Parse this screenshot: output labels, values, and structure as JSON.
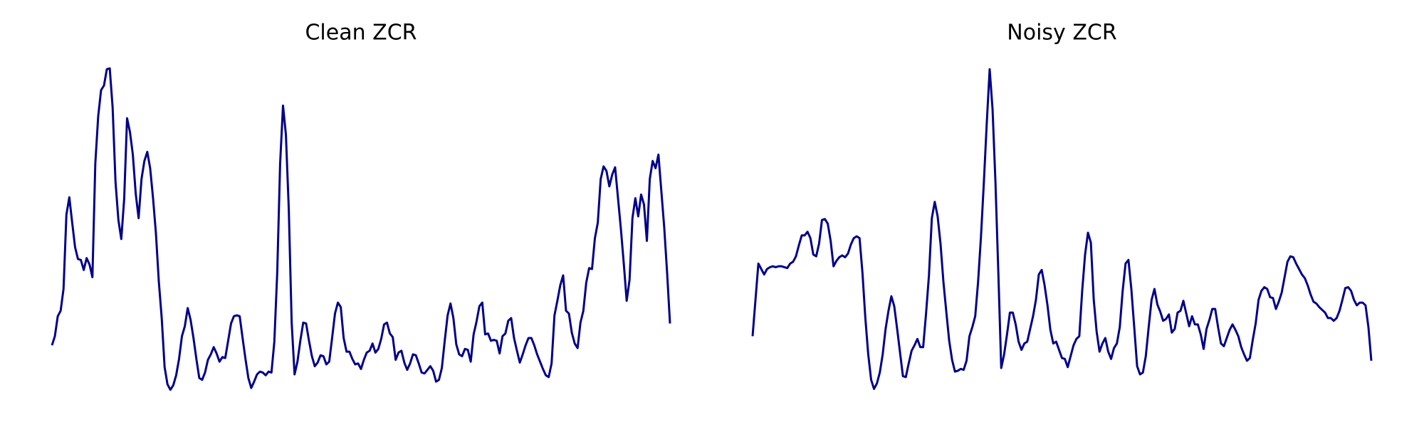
{
  "chart_data": [
    {
      "type": "line",
      "title": "Clean ZCR",
      "color": "#00008b",
      "ylim": [
        0,
        355
      ],
      "values": [
        50,
        60,
        82,
        88,
        112,
        194,
        213,
        185,
        158,
        145,
        144,
        133,
        146,
        139,
        125,
        250,
        302,
        331,
        336,
        354,
        355,
        312,
        230,
        188,
        167,
        211,
        300,
        285,
        260,
        217,
        190,
        233,
        253,
        263,
        245,
        212,
        173,
        120,
        80,
        26,
        7,
        1,
        6,
        17,
        35,
        60,
        71,
        91,
        78,
        58,
        35,
        14,
        12,
        20,
        34,
        40,
        48,
        41,
        32,
        37,
        36,
        55,
        74,
        82,
        83,
        82,
        58,
        35,
        14,
        3,
        10,
        18,
        21,
        20,
        17,
        21,
        20,
        54,
        130,
        250,
        314,
        282,
        200,
        75,
        18,
        32,
        55,
        75,
        74,
        55,
        38,
        27,
        31,
        39,
        38,
        29,
        32,
        58,
        85,
        97,
        92,
        58,
        43,
        43,
        35,
        29,
        30,
        24,
        34,
        42,
        44,
        52,
        42,
        46,
        57,
        73,
        75,
        63,
        59,
        34,
        42,
        44,
        31,
        23,
        30,
        40,
        39,
        30,
        20,
        19,
        23,
        27,
        22,
        10,
        12,
        25,
        55,
        83,
        96,
        80,
        51,
        40,
        38,
        46,
        45,
        32,
        62,
        76,
        93,
        97,
        62,
        63,
        55,
        56,
        55,
        41,
        60,
        63,
        77,
        80,
        58,
        44,
        31,
        40,
        50,
        58,
        58,
        50,
        40,
        32,
        24,
        17,
        15,
        30,
        83,
        99,
        116,
        127,
        88,
        85,
        64,
        52,
        47,
        75,
        88,
        119,
        135,
        134,
        168,
        185,
        233,
        247,
        242,
        225,
        238,
        246,
        212,
        178,
        140,
        99,
        122,
        190,
        212,
        192,
        216,
        205,
        165,
        233,
        253,
        245,
        260,
        220,
        180,
        130,
        74
      ]
    },
    {
      "type": "line",
      "title": "Noisy ZCR",
      "color": "#00008b",
      "ylim": [
        0,
        355
      ],
      "values": [
        60,
        100,
        140,
        134,
        128,
        134,
        136,
        137,
        136,
        137,
        137,
        136,
        135,
        140,
        142,
        148,
        160,
        171,
        171,
        175,
        168,
        150,
        148,
        162,
        188,
        189,
        184,
        165,
        137,
        143,
        147,
        149,
        147,
        151,
        161,
        168,
        170,
        168,
        130,
        80,
        40,
        12,
        2,
        8,
        20,
        40,
        68,
        88,
        104,
        93,
        68,
        42,
        16,
        15,
        30,
        44,
        50,
        57,
        48,
        48,
        85,
        127,
        190,
        208,
        192,
        162,
        120,
        87,
        55,
        34,
        21,
        22,
        24,
        23,
        33,
        60,
        70,
        82,
        120,
        170,
        230,
        295,
        354,
        310,
        230,
        130,
        25,
        40,
        62,
        86,
        86,
        73,
        54,
        45,
        52,
        54,
        68,
        82,
        100,
        128,
        133,
        116,
        94,
        67,
        52,
        54,
        45,
        36,
        35,
        26,
        38,
        50,
        57,
        60,
        110,
        150,
        174,
        163,
        100,
        65,
        43,
        52,
        58,
        43,
        35,
        47,
        52,
        70,
        110,
        140,
        144,
        112,
        70,
        27,
        18,
        20,
        38,
        70,
        100,
        112,
        95,
        87,
        77,
        79,
        84,
        64,
        68,
        86,
        88,
        99,
        85,
        71,
        82,
        73,
        73,
        62,
        46,
        68,
        78,
        90,
        90,
        70,
        52,
        49,
        58,
        67,
        73,
        67,
        60,
        48,
        40,
        33,
        36,
        56,
        74,
        100,
        110,
        114,
        112,
        103,
        102,
        90,
        98,
        108,
        125,
        142,
        148,
        147,
        140,
        134,
        128,
        124,
        116,
        106,
        98,
        96,
        92,
        89,
        86,
        80,
        80,
        77,
        80,
        88,
        100,
        113,
        114,
        110,
        100,
        94,
        97,
        97,
        94,
        70,
        33
      ]
    }
  ]
}
